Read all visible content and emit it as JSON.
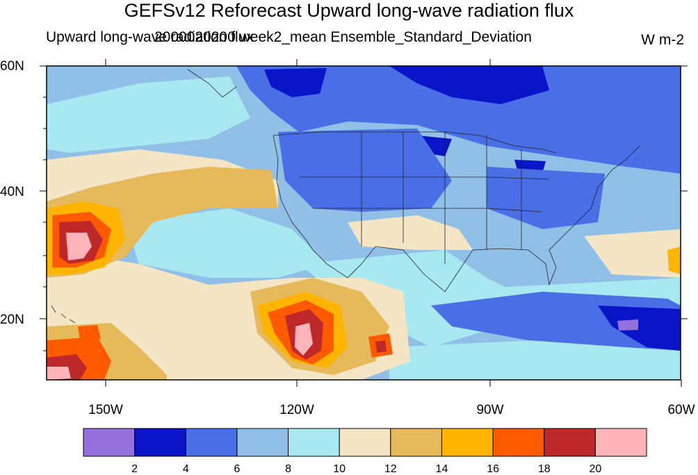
{
  "title": "GEFSv12 Reforecast Upward long-wave radiation flux",
  "subtitle_left": "Upward long-wave radiation flux",
  "subtitle_center": "2000020200 week2_mean Ensemble_Standard_Deviation",
  "units": "W m-2",
  "lat_labels": [
    "60N",
    "40N",
    "20N"
  ],
  "lon_labels": [
    "150W",
    "120W",
    "90W",
    "60W"
  ],
  "colorbar": {
    "labels": [
      "2",
      "4",
      "6",
      "8",
      "10",
      "12",
      "14",
      "16",
      "18",
      "20"
    ],
    "colors": [
      "#9370db",
      "#0a14c8",
      "#4a6ee6",
      "#90bfe8",
      "#a8e8f0",
      "#f4e6c4",
      "#e6b95a",
      "#ffb400",
      "#ff5a00",
      "#be2828",
      "#ffb4b9"
    ]
  },
  "chart_data": {
    "type": "heatmap",
    "variable": "Upward long-wave radiation flux",
    "units": "W m-2",
    "lon_range": [
      -160,
      -60
    ],
    "lat_range": [
      10,
      60
    ],
    "contour_levels": [
      2,
      4,
      6,
      8,
      10,
      12,
      14,
      16,
      18,
      20
    ],
    "description_regions": [
      {
        "lon": -157,
        "lat": 32,
        "value": 20
      },
      {
        "lon": -120,
        "lat": 18,
        "value": 20
      },
      {
        "lon": -157,
        "lat": 12,
        "value": 20
      },
      {
        "lon": -95,
        "lat": 57,
        "value": 3
      },
      {
        "lon": -110,
        "lat": 45,
        "value": 5
      },
      {
        "lon": -68,
        "lat": 19,
        "value": 2
      }
    ]
  }
}
